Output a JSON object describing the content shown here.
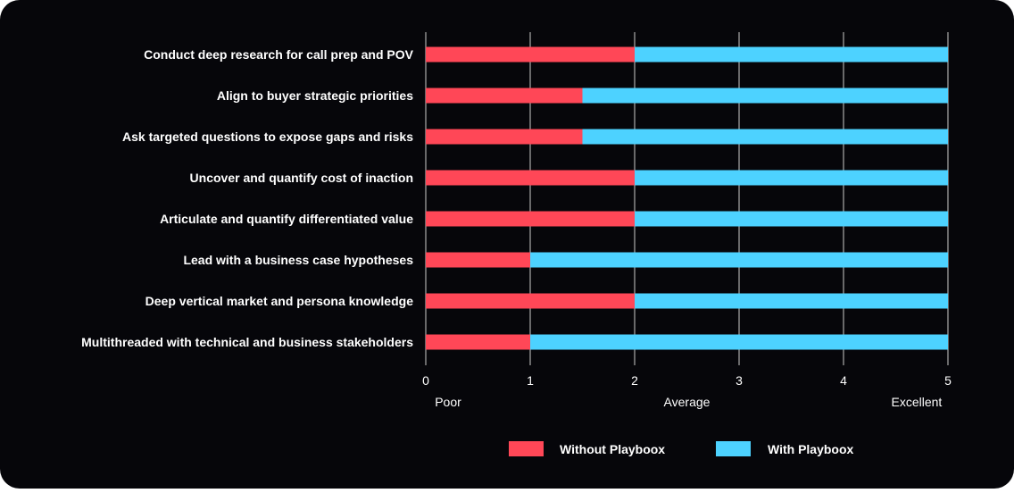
{
  "chart_data": {
    "type": "bar",
    "orientation": "horizontal",
    "stacked": true,
    "title": "",
    "xlabel": "",
    "ylabel": "",
    "xlim": [
      0,
      5
    ],
    "x_ticks": [
      "0",
      "1",
      "2",
      "3",
      "4",
      "5"
    ],
    "scale_labels": [
      {
        "label": "Poor",
        "at": 0
      },
      {
        "label": "Average",
        "at": 2.5
      },
      {
        "label": "Excellent",
        "at": 4.7
      }
    ],
    "grid": true,
    "legend_position": "bottom-center",
    "categories": [
      "Conduct deep research for call prep and POV",
      "Align to buyer strategic priorities",
      "Ask targeted questions to expose gaps and risks",
      "Uncover and quantify cost of inaction",
      "Articulate and quantify differentiated value",
      "Lead with a business case hypotheses",
      "Deep vertical market and persona knowledge",
      "Multithreaded with technical and business stakeholders"
    ],
    "series": [
      {
        "name": "Without Playboox",
        "color": "#ff4757",
        "values": [
          2,
          1.5,
          1.5,
          2,
          2,
          1,
          2,
          1
        ]
      },
      {
        "name": "With Playboox",
        "color": "#4dd2ff",
        "values": [
          3,
          3.5,
          3.5,
          3,
          3,
          4,
          3,
          4
        ]
      }
    ]
  },
  "colors": {
    "background": "#06060a",
    "gridline": "#8a8a8a",
    "text": "#ffffff"
  }
}
